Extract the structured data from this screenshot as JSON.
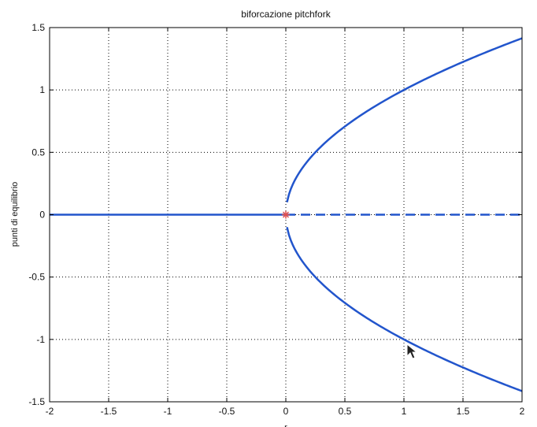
{
  "chart_data": {
    "type": "line",
    "title": "biforcazione pitchfork",
    "xlabel": "r",
    "ylabel": "punti di equilibrio",
    "xlim": [
      -2,
      2
    ],
    "ylim": [
      -1.5,
      1.5
    ],
    "xticks": [
      -2,
      -1.5,
      -1,
      -0.5,
      0,
      0.5,
      1,
      1.5,
      2
    ],
    "xtick_labels": [
      "-2",
      "-1.5",
      "-1",
      "-0.5",
      "0",
      "0.5",
      "1",
      "1.5",
      "2"
    ],
    "yticks": [
      -1.5,
      -1,
      -0.5,
      0,
      0.5,
      1,
      1.5
    ],
    "ytick_labels": [
      "-1.5",
      "-1",
      "-0.5",
      "0",
      "0.5",
      "1",
      "1.5"
    ],
    "grid": true,
    "series": [
      {
        "style": "solid",
        "color": "#2255cc",
        "x": [
          -2,
          0
        ],
        "y": [
          0,
          0
        ]
      },
      {
        "style": "dashed",
        "color": "#2255cc",
        "x": [
          0,
          2
        ],
        "y": [
          0,
          0
        ]
      },
      {
        "style": "solid",
        "color": "#2255cc",
        "function": "sqrt",
        "x": [
          0.01,
          2
        ]
      },
      {
        "style": "solid",
        "color": "#2255cc",
        "function": "neg_sqrt",
        "x": [
          0.01,
          2
        ]
      }
    ],
    "markers": [
      {
        "x": 0,
        "y": 0,
        "symbol": "asterisk",
        "color": "#e05050"
      }
    ]
  }
}
